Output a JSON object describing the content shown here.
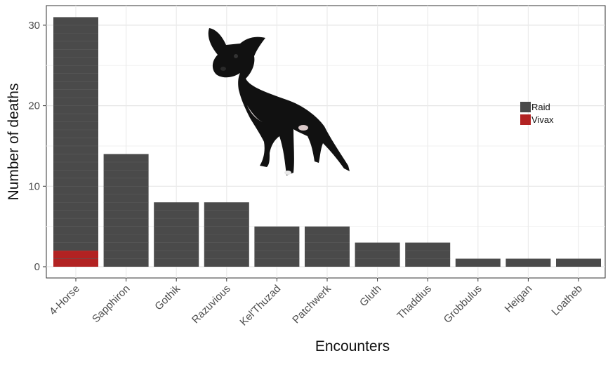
{
  "chart_data": {
    "type": "bar",
    "stacked": true,
    "title": "",
    "xlabel": "Encounters",
    "ylabel": "Number of deaths",
    "ylim": [
      0,
      32
    ],
    "yticks": [
      0,
      10,
      20,
      30
    ],
    "grid": true,
    "legend_position": "right",
    "categories": [
      "4-Horse",
      "Sapphiron",
      "Gothik",
      "Razuvious",
      "Kel'Thuzad",
      "Patchwerk",
      "Gluth",
      "Thaddius",
      "Grobbulus",
      "Heigan",
      "Loatheb"
    ],
    "series": [
      {
        "name": "Vivax",
        "color": "#b22222",
        "values": [
          2,
          0,
          0,
          0,
          0,
          0,
          0,
          0,
          0,
          0,
          0
        ]
      },
      {
        "name": "Raid",
        "color": "#4a4a4a",
        "values": [
          29,
          14,
          8,
          8,
          5,
          5,
          3,
          3,
          1,
          1,
          1
        ]
      }
    ],
    "legend_order": [
      "Raid",
      "Vivax"
    ]
  },
  "decoration": {
    "image": "black-dog-cutout-icon"
  }
}
